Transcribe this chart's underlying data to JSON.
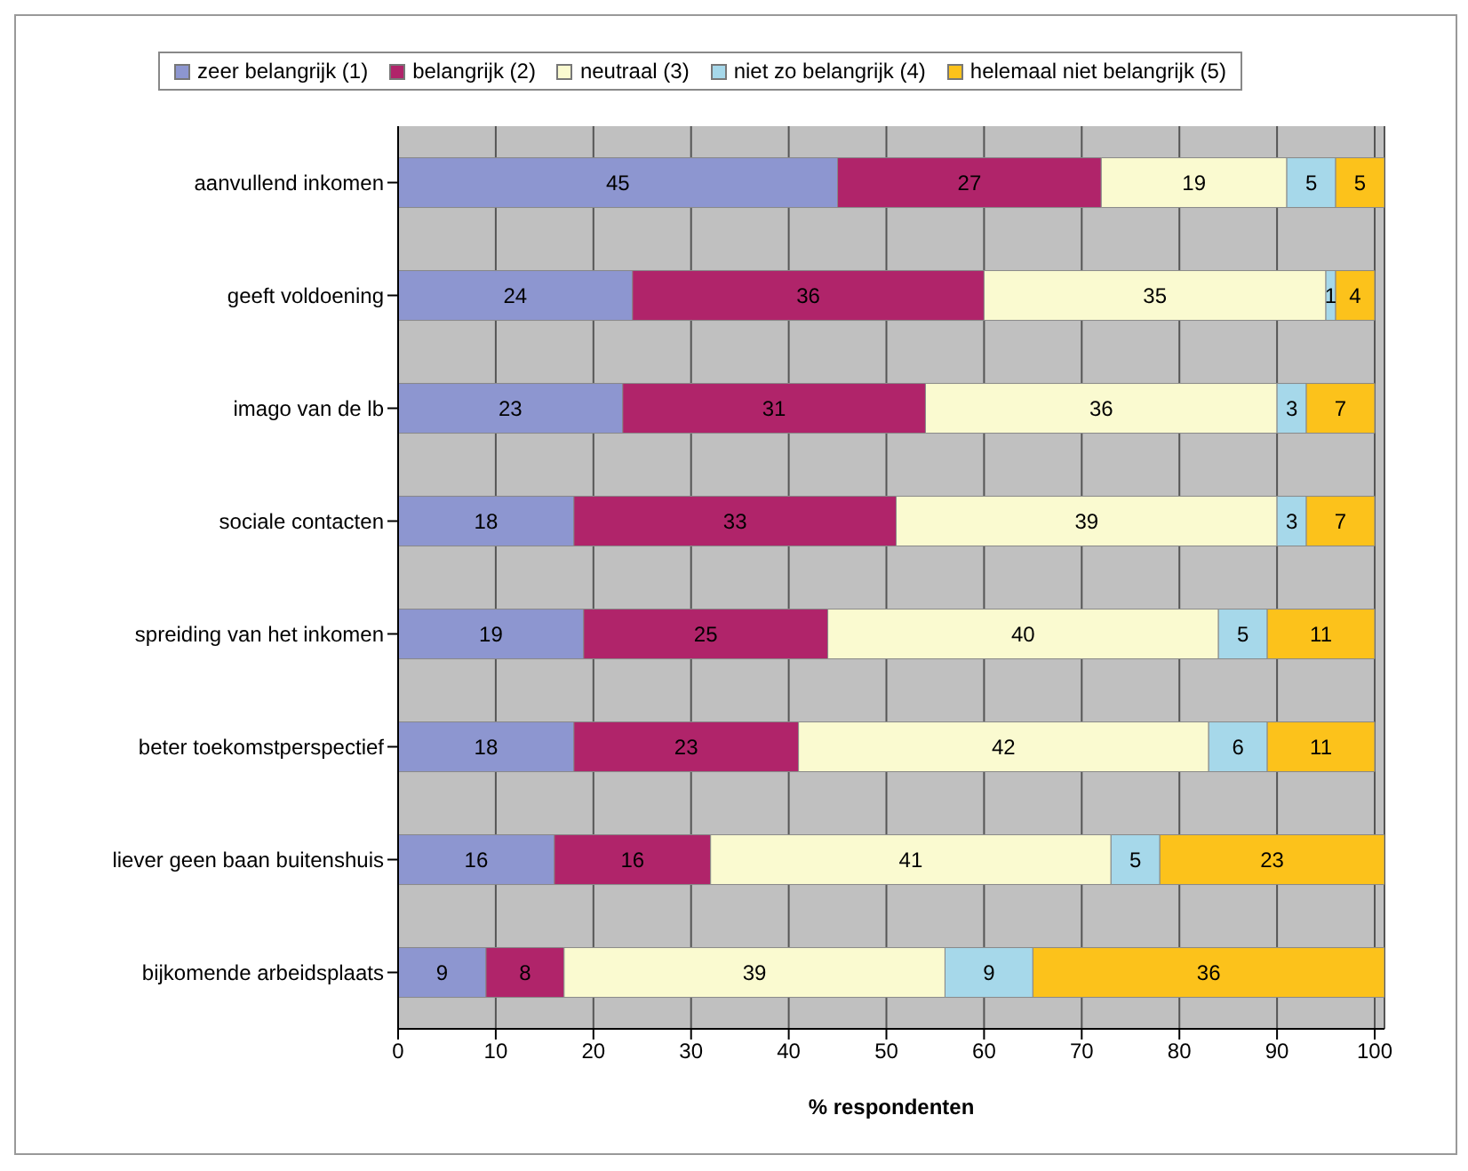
{
  "chart_data": {
    "type": "bar",
    "orientation": "horizontal",
    "stacked": true,
    "xlabel": "% respondenten",
    "categories": [
      "aanvullend inkomen",
      "geeft voldoening",
      "imago van de lb",
      "sociale contacten",
      "spreiding van het inkomen",
      "beter toekomstperspectief",
      "liever geen baan buitenshuis",
      "bijkomende arbeidsplaats"
    ],
    "series": [
      {
        "name": "zeer belangrijk (1)",
        "color": "#8d96d0",
        "values": [
          45,
          24,
          23,
          18,
          19,
          18,
          16,
          9
        ]
      },
      {
        "name": "belangrijk (2)",
        "color": "#b0246a",
        "values": [
          27,
          36,
          31,
          33,
          25,
          23,
          16,
          8
        ]
      },
      {
        "name": "neutraal (3)",
        "color": "#fafad0",
        "values": [
          19,
          35,
          36,
          39,
          40,
          42,
          41,
          39
        ]
      },
      {
        "name": "niet zo belangrijk (4)",
        "color": "#a6d8ea",
        "values": [
          5,
          1,
          3,
          3,
          5,
          6,
          5,
          9
        ]
      },
      {
        "name": "helemaal niet belangrijk (5)",
        "color": "#fcc21b",
        "values": [
          5,
          4,
          7,
          7,
          11,
          11,
          23,
          36
        ]
      }
    ],
    "xlim": [
      0,
      101
    ],
    "xticks": [
      0,
      10,
      20,
      30,
      40,
      50,
      60,
      70,
      80,
      90,
      100
    ],
    "grid": "x",
    "legend": "top",
    "data_labels": true
  }
}
